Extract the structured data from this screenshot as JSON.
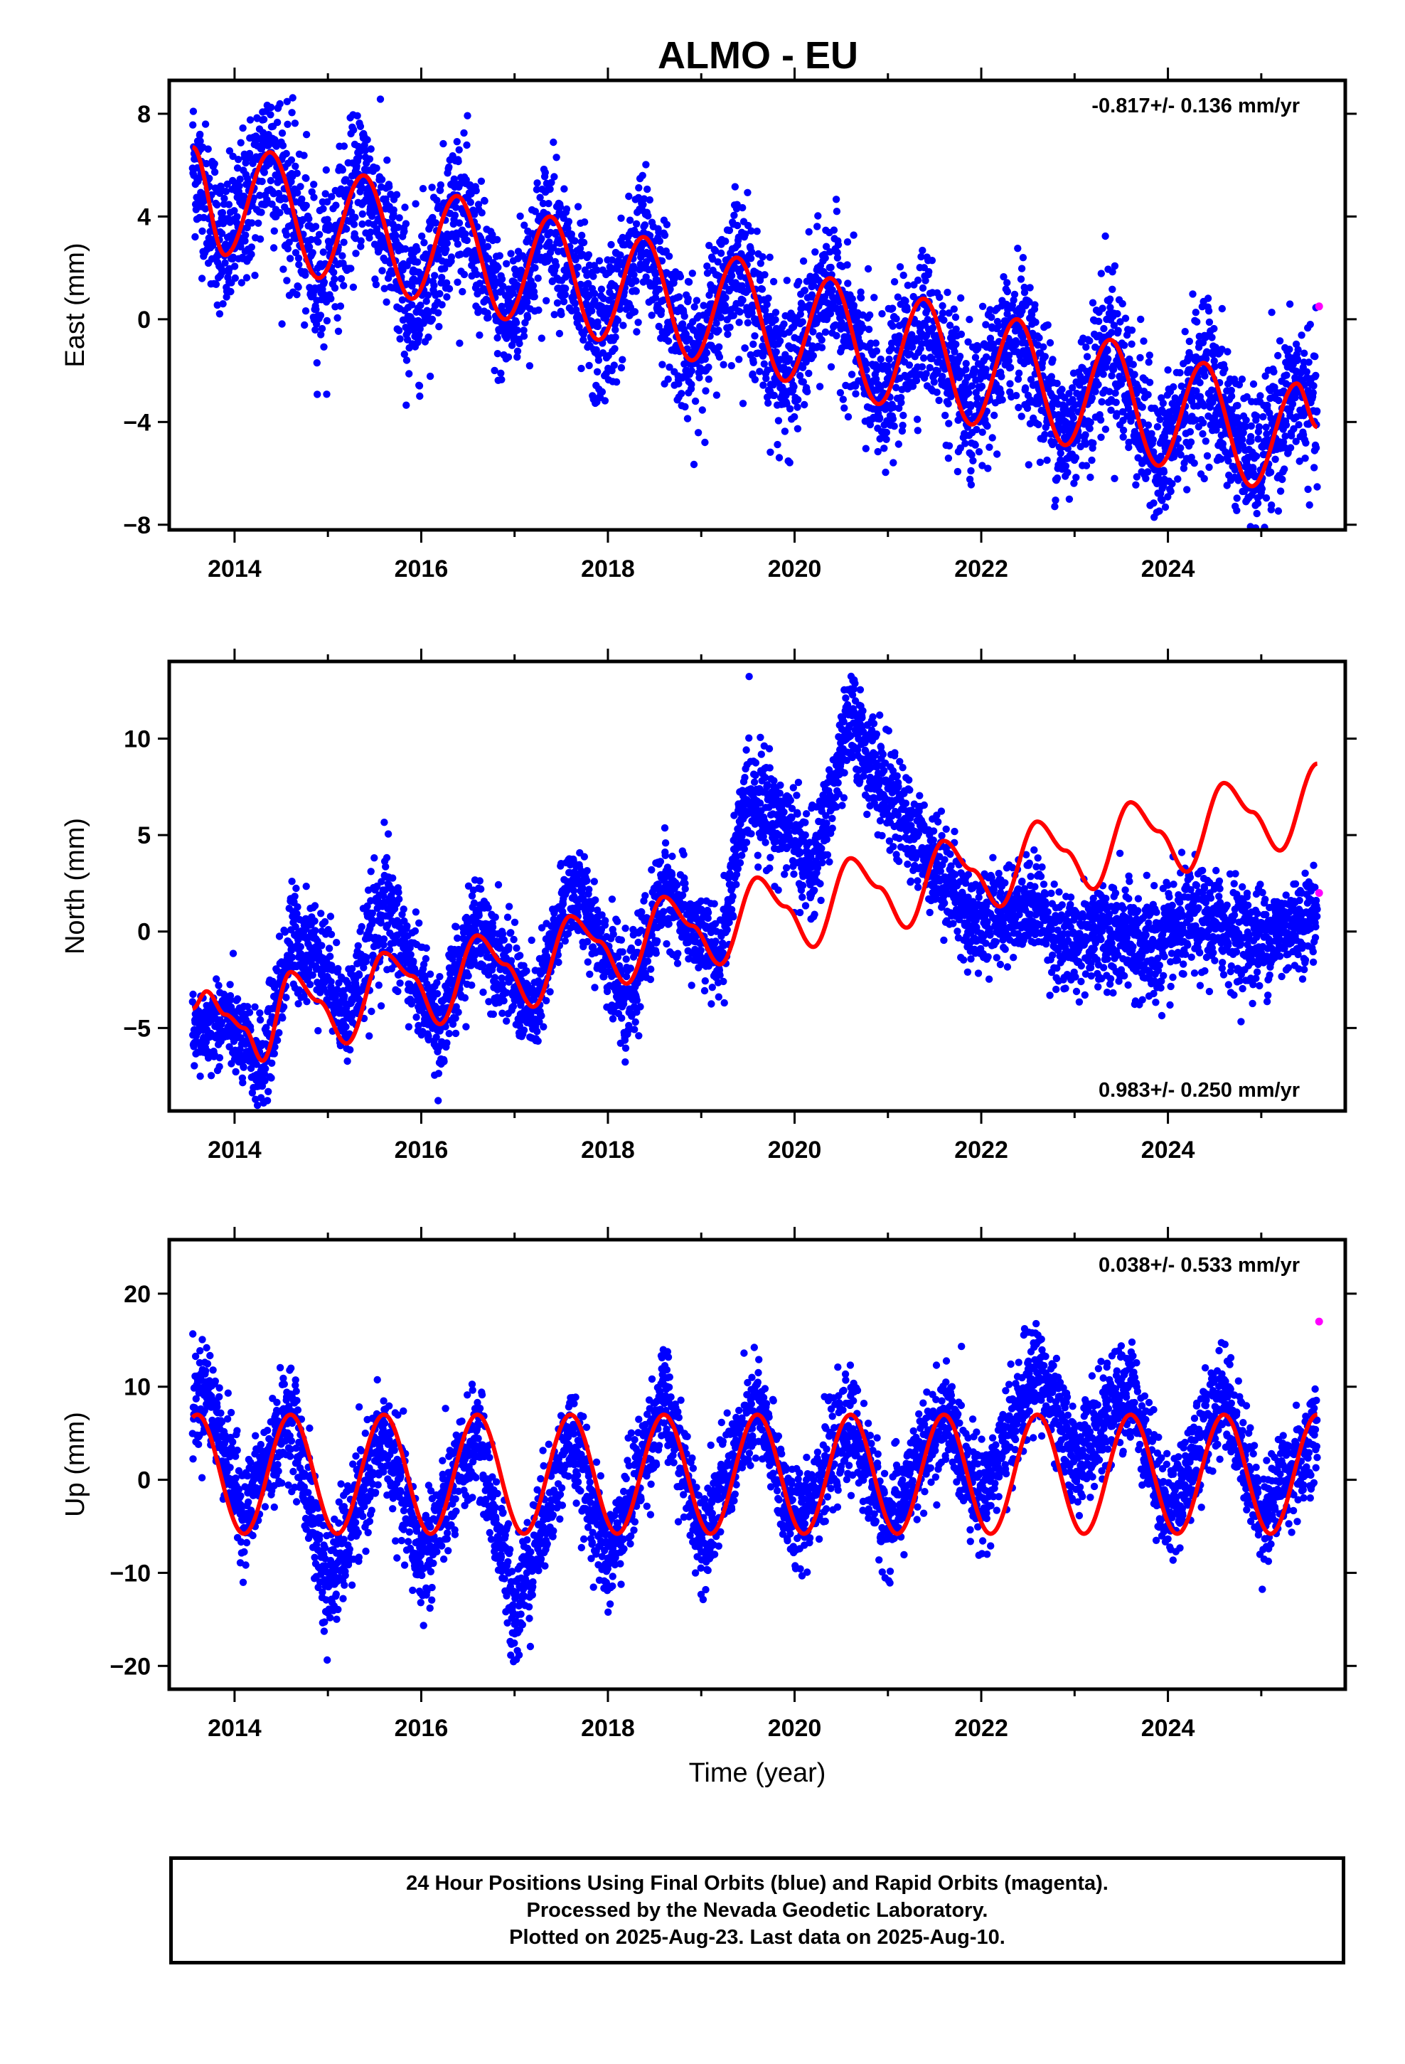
{
  "page_title": "ALMO - EU",
  "footer": {
    "line1": "24 Hour Positions Using Final Orbits (blue) and Rapid Orbits (magenta).",
    "line2": "Processed by the Nevada Geodetic Laboratory.",
    "line3": "Plotted on 2025-Aug-23. Last data on 2025-Aug-10."
  },
  "colors": {
    "final_orbits": "#0000ff",
    "rapid_orbits": "#ff00ff",
    "model_fit": "#ff0000",
    "axes": "#000000"
  },
  "chart_data": [
    {
      "type": "scatter",
      "title": "ALMO - EU",
      "ylabel": "East (mm)",
      "xlabel": "",
      "xlim": [
        2013.3,
        2025.9
      ],
      "ylim": [
        -8.2,
        9.3
      ],
      "x_ticks": [
        2014,
        2016,
        2018,
        2020,
        2022,
        2024
      ],
      "x_tick_labels": [
        "2014",
        "2016",
        "2018",
        "2020",
        "2022",
        "2024"
      ],
      "y_ticks": [
        -8,
        -4,
        0,
        4,
        8
      ],
      "y_tick_labels": [
        "−8",
        "−4",
        "0",
        "4",
        "8"
      ],
      "rate_label": "-0.817+/- 0.136 mm/yr",
      "rate_position": "top-right",
      "grid": false,
      "model": {
        "name": "model fit",
        "start_year": 2013.55,
        "end_year": 2025.6,
        "points": [
          [
            2013.55,
            6.7
          ],
          [
            2013.9,
            2.5
          ],
          [
            2014.38,
            6.5
          ],
          [
            2014.9,
            1.6
          ],
          [
            2015.38,
            5.6
          ],
          [
            2015.9,
            0.8
          ],
          [
            2016.38,
            4.8
          ],
          [
            2016.9,
            0.0
          ],
          [
            2017.38,
            4.0
          ],
          [
            2017.9,
            -0.8
          ],
          [
            2018.38,
            3.2
          ],
          [
            2018.9,
            -1.6
          ],
          [
            2019.38,
            2.4
          ],
          [
            2019.9,
            -2.4
          ],
          [
            2020.38,
            1.6
          ],
          [
            2020.9,
            -3.3
          ],
          [
            2021.38,
            0.8
          ],
          [
            2021.9,
            -4.1
          ],
          [
            2022.38,
            0.0
          ],
          [
            2022.9,
            -4.9
          ],
          [
            2023.38,
            -0.8
          ],
          [
            2023.9,
            -5.7
          ],
          [
            2024.38,
            -1.7
          ],
          [
            2024.9,
            -6.5
          ],
          [
            2025.38,
            -2.5
          ],
          [
            2025.6,
            -4.2
          ]
        ]
      },
      "final_orbit_series": {
        "name": "Final Orbits",
        "start_year": 2013.55,
        "end_year": 2025.6,
        "envelope": [
          [
            2013.55,
            6.3,
            3.0
          ],
          [
            2013.9,
            2.5,
            3.2
          ],
          [
            2014.38,
            6.7,
            3.6
          ],
          [
            2014.9,
            1.5,
            3.5
          ],
          [
            2015.38,
            5.8,
            3.0
          ],
          [
            2015.9,
            0.2,
            3.6
          ],
          [
            2016.38,
            4.8,
            3.0
          ],
          [
            2016.9,
            -0.3,
            3.0
          ],
          [
            2017.38,
            4.0,
            3.0
          ],
          [
            2017.9,
            -1.0,
            3.2
          ],
          [
            2018.38,
            3.2,
            3.0
          ],
          [
            2018.9,
            -1.8,
            3.0
          ],
          [
            2019.38,
            2.5,
            3.0
          ],
          [
            2019.9,
            -2.6,
            3.2
          ],
          [
            2020.38,
            1.6,
            3.0
          ],
          [
            2020.9,
            -3.3,
            3.2
          ],
          [
            2021.38,
            0.2,
            3.0
          ],
          [
            2021.9,
            -4.0,
            3.0
          ],
          [
            2022.38,
            0.0,
            3.0
          ],
          [
            2022.9,
            -4.8,
            3.0
          ],
          [
            2023.38,
            -0.6,
            3.4
          ],
          [
            2023.9,
            -5.8,
            3.0
          ],
          [
            2024.38,
            -1.8,
            3.2
          ],
          [
            2024.9,
            -6.0,
            3.0
          ],
          [
            2025.38,
            -2.7,
            3.0
          ],
          [
            2025.6,
            -3.8,
            2.8
          ]
        ]
      },
      "rapid_orbit_points": [
        [
          2025.62,
          0.5
        ]
      ]
    },
    {
      "type": "scatter",
      "title": "",
      "ylabel": "North (mm)",
      "xlabel": "",
      "xlim": [
        2013.3,
        2025.9
      ],
      "ylim": [
        -9.3,
        14.0
      ],
      "x_ticks": [
        2014,
        2016,
        2018,
        2020,
        2022,
        2024
      ],
      "x_tick_labels": [
        "2014",
        "2016",
        "2018",
        "2020",
        "2022",
        "2024"
      ],
      "y_ticks": [
        -5,
        0,
        5,
        10
      ],
      "y_tick_labels": [
        "−5",
        "0",
        "5",
        "10"
      ],
      "rate_label": "0.983+/- 0.250 mm/yr",
      "rate_position": "bottom-right",
      "grid": false,
      "model": {
        "name": "model fit",
        "start_year": 2013.55,
        "end_year": 2025.6,
        "points": [
          [
            2013.55,
            -4.0
          ],
          [
            2013.7,
            -3.1
          ],
          [
            2013.9,
            -4.3
          ],
          [
            2014.1,
            -5.0
          ],
          [
            2014.3,
            -6.7
          ],
          [
            2014.6,
            -2.1
          ],
          [
            2014.9,
            -3.6
          ],
          [
            2015.2,
            -5.8
          ],
          [
            2015.6,
            -1.1
          ],
          [
            2015.9,
            -2.3
          ],
          [
            2016.2,
            -4.8
          ],
          [
            2016.6,
            -0.2
          ],
          [
            2016.9,
            -1.7
          ],
          [
            2017.2,
            -3.9
          ],
          [
            2017.6,
            0.8
          ],
          [
            2017.9,
            -0.5
          ],
          [
            2018.2,
            -2.7
          ],
          [
            2018.6,
            1.8
          ],
          [
            2018.9,
            0.3
          ],
          [
            2019.2,
            -1.7
          ],
          [
            2019.6,
            2.8
          ],
          [
            2019.9,
            1.3
          ],
          [
            2020.2,
            -0.8
          ],
          [
            2020.6,
            3.8
          ],
          [
            2020.9,
            2.3
          ],
          [
            2021.2,
            0.2
          ],
          [
            2021.6,
            4.7
          ],
          [
            2021.9,
            3.2
          ],
          [
            2022.2,
            1.3
          ],
          [
            2022.6,
            5.7
          ],
          [
            2022.9,
            4.2
          ],
          [
            2023.2,
            2.2
          ],
          [
            2023.6,
            6.7
          ],
          [
            2023.9,
            5.2
          ],
          [
            2024.2,
            3.1
          ],
          [
            2024.6,
            7.7
          ],
          [
            2024.9,
            6.2
          ],
          [
            2025.2,
            4.2
          ],
          [
            2025.6,
            8.7
          ]
        ]
      },
      "final_orbit_series": {
        "name": "Final Orbits",
        "start_year": 2013.55,
        "end_year": 2025.6,
        "envelope": [
          [
            2013.55,
            -5.5,
            2.5
          ],
          [
            2013.9,
            -4.5,
            2.4
          ],
          [
            2014.3,
            -7.2,
            2.6
          ],
          [
            2014.6,
            -0.5,
            3.2
          ],
          [
            2014.9,
            -1.0,
            3.0
          ],
          [
            2015.2,
            -4.5,
            2.6
          ],
          [
            2015.6,
            1.5,
            3.8
          ],
          [
            2015.9,
            -2.0,
            3.0
          ],
          [
            2016.2,
            -5.0,
            2.8
          ],
          [
            2016.6,
            0.5,
            3.0
          ],
          [
            2016.9,
            -1.8,
            3.0
          ],
          [
            2017.2,
            -4.5,
            2.6
          ],
          [
            2017.6,
            2.5,
            2.8
          ],
          [
            2017.9,
            0.0,
            2.6
          ],
          [
            2018.2,
            -4.0,
            2.8
          ],
          [
            2018.6,
            2.5,
            2.8
          ],
          [
            2018.9,
            0.0,
            2.6
          ],
          [
            2019.2,
            -1.5,
            2.6
          ],
          [
            2019.5,
            7.5,
            3.0
          ],
          [
            2019.9,
            5.5,
            3.0
          ],
          [
            2020.2,
            3.0,
            2.8
          ],
          [
            2020.6,
            11.0,
            2.8
          ],
          [
            2020.9,
            8.0,
            3.0
          ],
          [
            2021.2,
            5.5,
            2.6
          ],
          [
            2021.6,
            3.0,
            3.0
          ],
          [
            2021.9,
            0.5,
            2.8
          ],
          [
            2022.2,
            1.0,
            2.6
          ],
          [
            2022.6,
            1.5,
            2.6
          ],
          [
            2022.9,
            -1.0,
            3.0
          ],
          [
            2023.2,
            0.0,
            2.8
          ],
          [
            2023.6,
            -0.5,
            3.4
          ],
          [
            2023.9,
            -1.0,
            3.4
          ],
          [
            2024.2,
            0.5,
            3.0
          ],
          [
            2024.6,
            0.3,
            3.0
          ],
          [
            2024.9,
            -0.5,
            3.0
          ],
          [
            2025.2,
            0.0,
            2.8
          ],
          [
            2025.6,
            1.0,
            2.6
          ]
        ]
      },
      "rapid_orbit_points": [
        [
          2025.62,
          2.0
        ]
      ]
    },
    {
      "type": "scatter",
      "title": "",
      "ylabel": "Up (mm)",
      "xlabel": "Time (year)",
      "xlim": [
        2013.3,
        2025.9
      ],
      "ylim": [
        -22.5,
        25.8
      ],
      "x_ticks": [
        2014,
        2016,
        2018,
        2020,
        2022,
        2024
      ],
      "x_tick_labels": [
        "2014",
        "2016",
        "2018",
        "2020",
        "2022",
        "2024"
      ],
      "y_ticks": [
        -20,
        -10,
        0,
        10,
        20
      ],
      "y_tick_labels": [
        "−20",
        "−10",
        "0",
        "10",
        "20"
      ],
      "rate_label": "0.038+/- 0.533 mm/yr",
      "rate_position": "top-right",
      "grid": false,
      "model": {
        "name": "model fit",
        "start_year": 2013.55,
        "end_year": 2025.6,
        "amplitude": 6.4,
        "offset": 0.6,
        "peak_phase": 0.6
      },
      "final_orbit_series": {
        "name": "Final Orbits",
        "start_year": 2013.55,
        "end_year": 2025.6,
        "envelope": [
          [
            2013.55,
            8.0,
            6.0
          ],
          [
            2013.7,
            10.0,
            6.0
          ],
          [
            2014.1,
            -4.0,
            6.0
          ],
          [
            2014.6,
            7.5,
            6.0
          ],
          [
            2015.0,
            -12.0,
            7.0
          ],
          [
            2015.6,
            5.0,
            6.0
          ],
          [
            2016.0,
            -9.0,
            7.0
          ],
          [
            2016.6,
            5.0,
            6.0
          ],
          [
            2017.0,
            -14.0,
            7.0
          ],
          [
            2017.6,
            5.0,
            6.0
          ],
          [
            2018.0,
            -9.0,
            6.0
          ],
          [
            2018.6,
            9.0,
            6.0
          ],
          [
            2019.0,
            -6.0,
            6.0
          ],
          [
            2019.6,
            8.0,
            6.0
          ],
          [
            2020.0,
            -5.0,
            6.0
          ],
          [
            2020.6,
            6.0,
            6.0
          ],
          [
            2021.0,
            -5.0,
            6.0
          ],
          [
            2021.6,
            7.0,
            6.0
          ],
          [
            2022.0,
            -2.0,
            6.0
          ],
          [
            2022.6,
            12.0,
            6.0
          ],
          [
            2023.0,
            2.0,
            6.0
          ],
          [
            2023.6,
            10.0,
            6.0
          ],
          [
            2024.0,
            -4.0,
            6.0
          ],
          [
            2024.6,
            10.0,
            6.0
          ],
          [
            2025.0,
            -4.0,
            6.0
          ],
          [
            2025.6,
            5.0,
            6.0
          ]
        ]
      },
      "rapid_orbit_points": [
        [
          2025.62,
          17.0
        ]
      ]
    }
  ]
}
